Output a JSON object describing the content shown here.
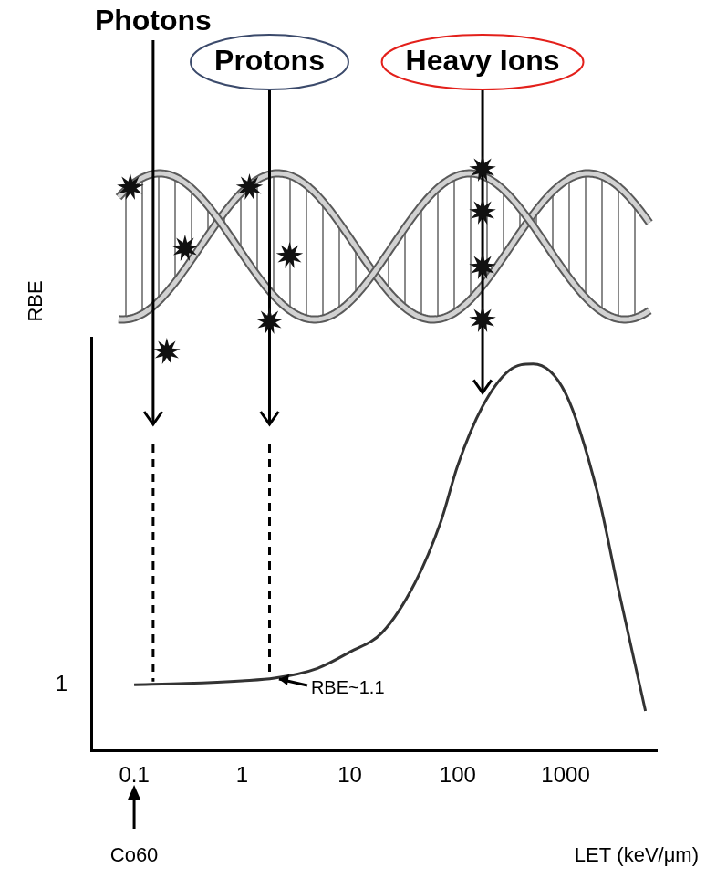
{
  "chart_data": {
    "type": "line",
    "x_label": "LET (keV/μm)",
    "y_label": "RBE",
    "x": [
      0.1,
      0.3,
      1,
      2,
      5,
      10,
      20,
      40,
      70,
      100,
      170,
      300,
      500,
      1000,
      2000,
      3000,
      5500
    ],
    "values": [
      1.0,
      1.02,
      1.06,
      1.1,
      1.25,
      1.5,
      1.8,
      2.55,
      3.5,
      4.35,
      5.25,
      5.8,
      5.9,
      5.45,
      3.9,
      2.55,
      0.6
    ],
    "color": "#333333",
    "log": "x",
    "xlim": [
      0.04,
      7000
    ],
    "xticks": [
      0.1,
      1,
      10,
      100,
      1000
    ],
    "ylim": [
      0,
      6.3
    ],
    "yticks": [
      1
    ],
    "grid": false,
    "particles": [
      {
        "name": "Photons",
        "x": 0.15
      },
      {
        "name": "Protons",
        "x": 1.8,
        "color": "#3b4a6b"
      },
      {
        "name": "Heavy Ions",
        "x": 170,
        "color": "#e3201b"
      }
    ],
    "annotations": [
      {
        "text": "RBE~1.1",
        "x": 2,
        "y": 1.1
      },
      {
        "text": "Co60",
        "x": 0.1
      }
    ]
  }
}
